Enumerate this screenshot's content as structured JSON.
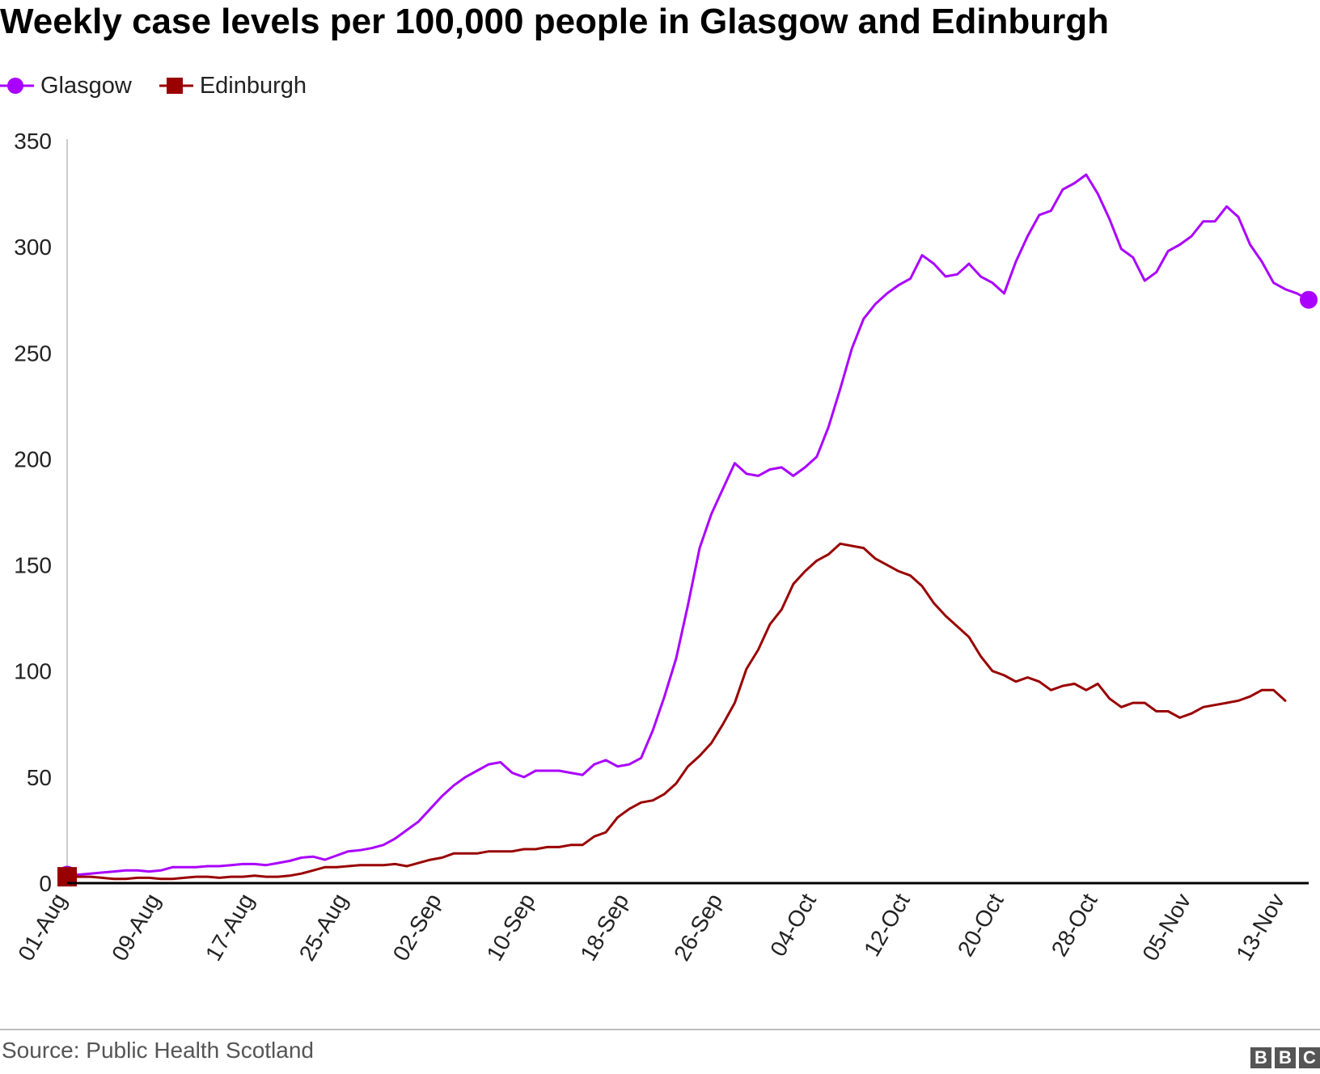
{
  "chart_data": {
    "type": "line",
    "title": "Weekly case levels per 100,000 people in Glasgow and Edinburgh",
    "xlabel": "",
    "ylabel": "",
    "ylim": [
      0,
      350
    ],
    "yticks": [
      "0",
      "50",
      "100",
      "150",
      "200",
      "250",
      "300",
      "350"
    ],
    "xticks": [
      "01-Aug",
      "09-Aug",
      "17-Aug",
      "25-Aug",
      "02-Sep",
      "10-Sep",
      "18-Sep",
      "26-Sep",
      "04-Oct",
      "12-Oct",
      "20-Oct",
      "28-Oct",
      "05-Nov",
      "13-Nov"
    ],
    "x_start": "01-Aug",
    "x_end": "13-Nov",
    "grid": false,
    "legend": "top-left",
    "series": [
      {
        "name": "Glasgow",
        "color": "#aa00ff",
        "marker": "circle",
        "values": [
          4,
          4,
          4.5,
          5,
          5.5,
          6,
          6,
          5.5,
          6,
          7.5,
          7.5,
          7.5,
          8,
          8,
          8.5,
          9,
          9,
          8.5,
          9.5,
          10.5,
          12,
          12.5,
          11,
          13,
          15,
          15.5,
          16.5,
          18,
          21,
          25,
          29,
          35,
          41,
          46,
          50,
          53,
          56,
          57,
          52,
          50,
          53,
          53,
          53,
          52,
          51,
          56,
          58,
          55,
          56,
          59,
          72,
          88,
          106,
          131,
          158,
          174,
          186,
          198,
          193,
          192,
          195,
          196,
          192,
          196,
          201,
          215,
          233,
          252,
          266,
          273,
          278,
          282,
          285,
          296,
          292,
          286,
          287,
          292,
          286,
          283,
          278,
          293,
          305,
          315,
          317,
          327,
          330,
          334,
          325,
          313,
          299,
          295,
          284,
          288,
          298,
          301,
          305,
          312,
          312,
          319,
          314,
          301,
          293,
          283,
          280,
          278,
          275
        ]
      },
      {
        "name": "Edinburgh",
        "color": "#990000",
        "marker": "square",
        "values": [
          3,
          3,
          3,
          2.5,
          2,
          2,
          2.5,
          2.5,
          2,
          2,
          2.5,
          3,
          3,
          2.5,
          3,
          3,
          3.5,
          3,
          3,
          3.5,
          4.5,
          6,
          7.5,
          7.5,
          8,
          8.5,
          8.5,
          8.5,
          9,
          8,
          9.5,
          11,
          12,
          14,
          14,
          14,
          15,
          15,
          15,
          16,
          16,
          17,
          17,
          18,
          18,
          22,
          24,
          31,
          35,
          38,
          39,
          42,
          47,
          55,
          60,
          66,
          75,
          85,
          101,
          110,
          122,
          129,
          141,
          147,
          152,
          155,
          160,
          159,
          158,
          153,
          150,
          147,
          145,
          140,
          132,
          126,
          121,
          116,
          107,
          100,
          98,
          95,
          97,
          95,
          91,
          93,
          94,
          91,
          94,
          87,
          83,
          85,
          85,
          81,
          81,
          78,
          80,
          83,
          84,
          85,
          86,
          88,
          91,
          91,
          86
        ]
      }
    ],
    "source": "Source: Public Health Scotland",
    "brand": "BBC"
  }
}
